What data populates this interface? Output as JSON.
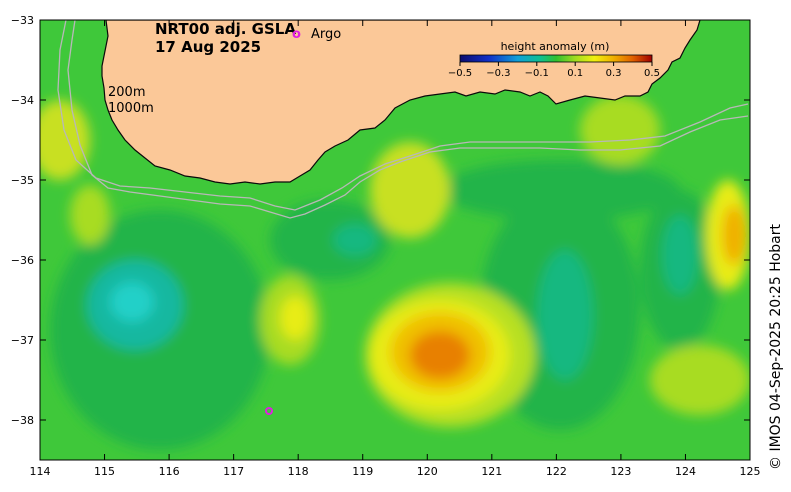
{
  "map": {
    "title_line1": "NRT00 adj. GSLA",
    "title_line2": "17 Aug 2025",
    "contour_labels": [
      "200m",
      "1000m"
    ],
    "x_ticks": [
      "114",
      "115",
      "116",
      "117",
      "118",
      "119",
      "120",
      "121",
      "122",
      "123",
      "124",
      "125"
    ],
    "y_ticks": [
      "−33",
      "−34",
      "−35",
      "−36",
      "−37",
      "−38"
    ],
    "x_range": [
      114,
      125
    ],
    "y_range": [
      -33,
      -38.5
    ],
    "legend": {
      "marker_symbol": "o",
      "marker_label": "Argo",
      "colorbar_title": "height anomaly (m)",
      "colorbar_ticks": [
        "−0.5",
        "−0.3",
        "−0.1",
        "0.1",
        "0.3",
        "0.5"
      ],
      "colorbar_range": [
        -0.5,
        0.5
      ]
    },
    "credit": "© IMOS 04-Sep-2025 20:25 Hobart",
    "colors": {
      "land": "#fbc898",
      "ocean_base": "#3fc83a",
      "argo_marker": "#e020e0",
      "isobath": "#b8b8b8"
    }
  }
}
